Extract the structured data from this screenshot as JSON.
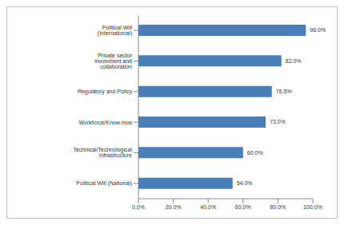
{
  "chart_data": {
    "type": "bar",
    "orientation": "horizontal",
    "categories": [
      "Political Will (International)",
      "Private sector involvment and collaboration",
      "Regulatory and Policy",
      "Workforce/Know-how",
      "Technical/Technological Infrastructure",
      "Political Will (National)"
    ],
    "values": [
      96.0,
      82.0,
      76.5,
      73.0,
      60.0,
      54.0
    ],
    "value_labels": [
      "96.0%",
      "82.0%",
      "76.5%",
      "73.0%",
      "60.0%",
      "54.0%"
    ],
    "data_labels": true,
    "color": "#4a7ebb",
    "xlim": [
      0,
      100
    ],
    "xticks": [
      {
        "value": 0,
        "label": "0.0%"
      },
      {
        "value": 20,
        "label": "20.0%"
      },
      {
        "value": 40,
        "label": "40.0%"
      },
      {
        "value": 60,
        "label": "60.0%"
      },
      {
        "value": 80,
        "label": "80.0%"
      },
      {
        "value": 100,
        "label": "100.0%"
      }
    ],
    "grid": false
  }
}
